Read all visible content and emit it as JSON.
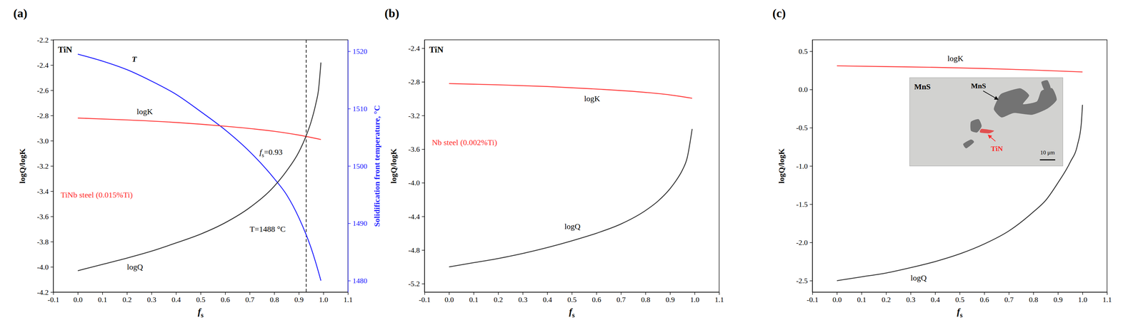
{
  "chart_data": [
    {
      "type": "line",
      "panel_label": "(a)",
      "title": "TiN",
      "x_label": "fs",
      "y_label": "logQ/logK",
      "y2_label": "Solidification front temperature, °C",
      "xlim": [
        -0.1,
        1.1
      ],
      "xticks": [
        -0.1,
        {
          "value": 0,
          "label": "0.0"
        },
        0.1,
        0.2,
        0.3,
        0.4,
        0.5,
        0.6,
        0.7,
        0.8,
        0.9,
        {
          "value": 1,
          "label": "1.0"
        },
        1.1
      ],
      "ylim": [
        -4.2,
        -2.2
      ],
      "yticks": [
        -4.2,
        {
          "value": -4,
          "label": "-4.0"
        },
        -3.8,
        -3.6,
        -3.4,
        -3.2,
        {
          "value": -3,
          "label": "-3.0"
        },
        -2.8,
        -2.6,
        -2.4,
        -2.2
      ],
      "y2lim": [
        1478,
        1522
      ],
      "y2ticks": [
        1480,
        1490,
        1500,
        1510,
        1520
      ],
      "series": [
        {
          "name": "T",
          "color": "#1f1fff",
          "axis": "y2",
          "line_style": "solid",
          "x": [
            0,
            0.1,
            0.2,
            0.3,
            0.4,
            0.5,
            0.6,
            0.7,
            0.8,
            0.85,
            0.9,
            0.93,
            0.95,
            0.97,
            0.99
          ],
          "values": [
            1519.5,
            1518.3,
            1516.8,
            1514.8,
            1512.5,
            1509.5,
            1506.3,
            1502.5,
            1497.8,
            1495,
            1491,
            1488,
            1485.7,
            1483,
            1480
          ],
          "label_at": [
            0.22,
            1518.2
          ]
        },
        {
          "name": "logK",
          "color": "#ff3b3b",
          "line_style": "solid",
          "x": [
            0,
            0.2,
            0.4,
            0.6,
            0.8,
            0.9,
            0.99
          ],
          "values": [
            -2.82,
            -2.835,
            -2.855,
            -2.885,
            -2.925,
            -2.955,
            -2.99
          ],
          "label_at": [
            0.24,
            -2.79
          ]
        },
        {
          "name": "logQ",
          "color": "#333333",
          "line_style": "solid",
          "x": [
            0,
            0.1,
            0.2,
            0.3,
            0.4,
            0.5,
            0.6,
            0.7,
            0.8,
            0.85,
            0.9,
            0.93,
            0.95,
            0.97,
            0.98,
            0.99
          ],
          "values": [
            -4.03,
            -3.98,
            -3.93,
            -3.875,
            -3.81,
            -3.74,
            -3.65,
            -3.53,
            -3.36,
            -3.24,
            -3.09,
            -2.96,
            -2.85,
            -2.7,
            -2.6,
            -2.38
          ],
          "label_at": [
            0.2,
            -4.02
          ]
        }
      ],
      "annotations": [
        {
          "text": "TiNb steel (0.015%Ti)",
          "x": -0.07,
          "y": -3.45,
          "color": "#ff2a2a"
        },
        {
          "text": "fs=0.93",
          "x": 0.74,
          "y": -3.11,
          "color": "#000000"
        },
        {
          "text": "T=1488 °C",
          "x": 0.7,
          "y": -3.72,
          "color": "#000000"
        }
      ],
      "reference_lines": [
        {
          "x": 0.93,
          "line_style": "dashed"
        }
      ]
    },
    {
      "type": "line",
      "panel_label": "(b)",
      "title": "TiN",
      "x_label": "fs",
      "y_label": "logQ/logK",
      "xlim": [
        -0.1,
        1.1
      ],
      "xticks": [
        -0.1,
        {
          "value": 0,
          "label": "0.0"
        },
        0.1,
        0.2,
        0.3,
        0.4,
        0.5,
        0.6,
        0.7,
        0.8,
        0.9,
        {
          "value": 1,
          "label": "1.0"
        },
        1.1
      ],
      "ylim": [
        -5.3,
        -2.3
      ],
      "yticks": [
        -5.2,
        -4.8,
        -4.4,
        {
          "value": -4,
          "label": "-4.0"
        },
        -3.6,
        -3.2,
        -2.8,
        -2.4
      ],
      "series": [
        {
          "name": "logK",
          "color": "#ff3b3b",
          "line_style": "solid",
          "x": [
            0,
            0.2,
            0.4,
            0.6,
            0.8,
            0.9,
            0.99
          ],
          "values": [
            -2.82,
            -2.835,
            -2.855,
            -2.885,
            -2.925,
            -2.955,
            -2.995
          ],
          "label_at": [
            0.55,
            -3.03
          ]
        },
        {
          "name": "logQ",
          "color": "#333333",
          "line_style": "solid",
          "x": [
            0,
            0.1,
            0.2,
            0.3,
            0.4,
            0.5,
            0.6,
            0.7,
            0.8,
            0.85,
            0.9,
            0.93,
            0.95,
            0.97,
            0.99
          ],
          "values": [
            -5.0,
            -4.95,
            -4.9,
            -4.84,
            -4.77,
            -4.69,
            -4.6,
            -4.49,
            -4.33,
            -4.22,
            -4.07,
            -3.95,
            -3.85,
            -3.7,
            -3.36
          ],
          "label_at": [
            0.47,
            -4.55
          ]
        }
      ],
      "annotations": [
        {
          "text": "Nb steel (0.002%Ti)",
          "x": -0.07,
          "y": -3.55,
          "color": "#ff2a2a"
        }
      ]
    },
    {
      "type": "line",
      "panel_label": "(c)",
      "x_label": "fs",
      "y_label": "logQ/logK",
      "xlim": [
        -0.1,
        1.1
      ],
      "xticks": [
        -0.1,
        {
          "value": 0,
          "label": "0.0"
        },
        0.1,
        0.2,
        0.3,
        0.4,
        0.5,
        0.6,
        0.7,
        0.8,
        0.9,
        {
          "value": 1,
          "label": "1.0"
        },
        1.1
      ],
      "ylim": [
        -2.65,
        0.65
      ],
      "yticks": [
        -2.5,
        {
          "value": -2,
          "label": "-2.0"
        },
        -1.5,
        {
          "value": -1,
          "label": "-1.0"
        },
        -0.5,
        {
          "value": 0,
          "label": "0.0"
        },
        0.5
      ],
      "series": [
        {
          "name": "logK",
          "color": "#ff3b3b",
          "line_style": "solid",
          "x": [
            0,
            0.2,
            0.4,
            0.6,
            0.8,
            1.0
          ],
          "values": [
            0.31,
            0.3,
            0.29,
            0.275,
            0.255,
            0.23
          ],
          "label_at": [
            0.45,
            0.37
          ]
        },
        {
          "name": "logQ",
          "color": "#333333",
          "line_style": "solid",
          "x": [
            0,
            0.1,
            0.2,
            0.3,
            0.4,
            0.5,
            0.6,
            0.7,
            0.8,
            0.85,
            0.9,
            0.95,
            0.98,
            0.995,
            1.0
          ],
          "values": [
            -2.5,
            -2.45,
            -2.4,
            -2.33,
            -2.25,
            -2.15,
            -2.02,
            -1.85,
            -1.6,
            -1.45,
            -1.22,
            -0.95,
            -0.72,
            -0.45,
            -0.2
          ],
          "label_at": [
            0.3,
            -2.5
          ]
        }
      ],
      "inset": {
        "labels": [
          {
            "text": "MnS",
            "color": "#000000"
          },
          {
            "text": "MnS",
            "color": "#000000"
          },
          {
            "text": "TiN",
            "color": "#ff2a2a"
          },
          {
            "text": "10 μm",
            "color": "#000000"
          }
        ]
      }
    }
  ]
}
